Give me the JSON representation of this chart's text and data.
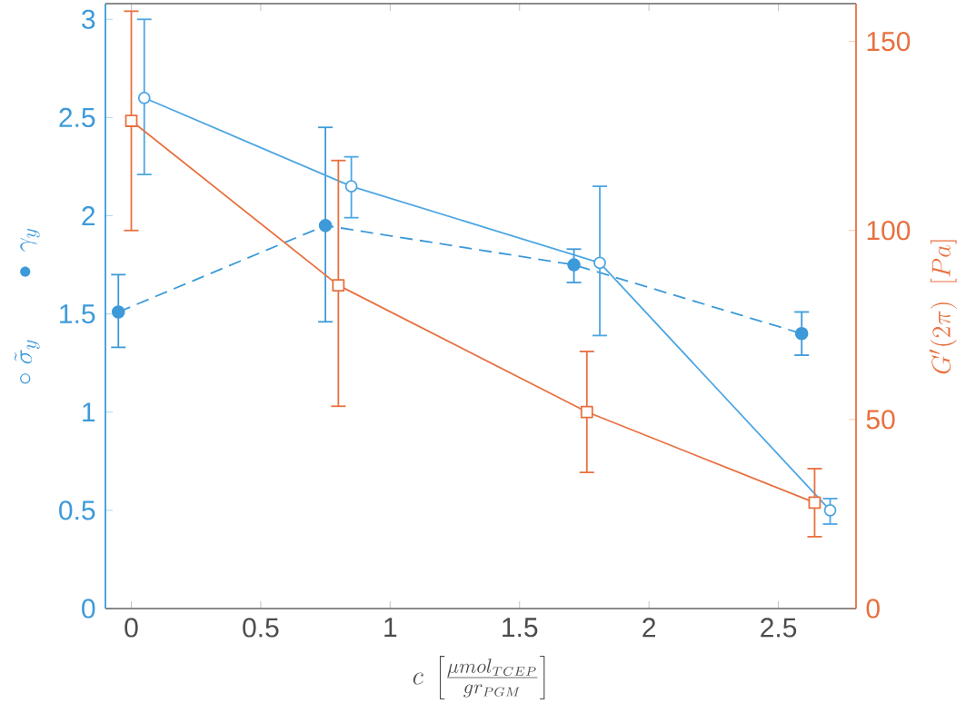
{
  "chart_data": {
    "type": "line",
    "xlabel": "c\\ \\left[\\frac{\\mu mol_{TCEP}}{gr_{PGM}}\\right]",
    "ylabel": "\\circ\\ \\tilde{\\sigma}_y\\qquad \\bullet\\ \\gamma_y",
    "y2label": "G'(2\\pi)\\ \\ [Pa]",
    "xlim": [
      -0.1,
      2.8
    ],
    "xticks": [
      0,
      0.5,
      1,
      1.5,
      2,
      2.5
    ],
    "ylim": [
      0,
      3.08
    ],
    "yticks": [
      0,
      0.5,
      1,
      1.5,
      2,
      2.5,
      3
    ],
    "y2lim": [
      0,
      160
    ],
    "y2ticks": [
      0,
      50,
      100,
      150
    ],
    "series": [
      {
        "color": "#3d9ad9",
        "marker": "circle",
        "line_style": "dashed",
        "x": [
          -0.05,
          0.75,
          1.71,
          2.59
        ],
        "values": [
          1.51,
          1.95,
          1.75,
          1.4
        ],
        "errors": [
          [
            1.33,
            1.7
          ],
          [
            1.46,
            2.45
          ],
          [
            1.66,
            1.83
          ],
          [
            1.29,
            1.51
          ]
        ]
      },
      {
        "color": "#4da6e3",
        "marker": "circle",
        "line_style": "solid",
        "x": [
          0.05,
          0.85,
          1.81,
          2.7
        ],
        "values": [
          2.6,
          2.15,
          1.76,
          0.5
        ],
        "errors": [
          [
            2.21,
            3.0
          ],
          [
            1.99,
            2.3
          ],
          [
            1.39,
            2.15
          ],
          [
            0.43,
            0.56
          ]
        ]
      },
      {
        "color": "#e8703f",
        "marker": "square",
        "line_style": "solid",
        "axis": "y2",
        "x": [
          0.0,
          0.8,
          1.76,
          2.64
        ],
        "values": [
          129,
          85.5,
          52,
          28
        ],
        "errors": [
          [
            100,
            158
          ],
          [
            53.5,
            118.5
          ],
          [
            36,
            68
          ],
          [
            19,
            37
          ]
        ]
      }
    ]
  }
}
